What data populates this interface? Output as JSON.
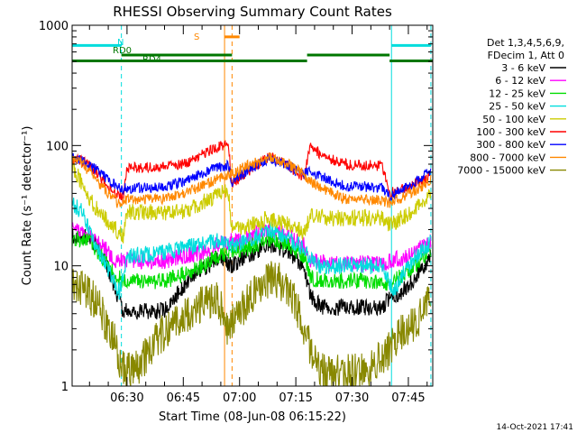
{
  "chart_data": {
    "type": "line",
    "title": "RHESSI Observing Summary Count Rates",
    "xlabel": "Start Time (08-Jun-08 06:15:22)",
    "ylabel": "Count Rate (s⁻¹ detector⁻¹)",
    "yscale": "log",
    "ylim": [
      1,
      1000
    ],
    "xlim": [
      "06:15:22",
      "07:51:30"
    ],
    "x_ticks": [
      "06:30",
      "06:45",
      "07:00",
      "07:15",
      "07:30",
      "07:45"
    ],
    "y_ticks": [
      "1",
      "10",
      "100",
      "1000"
    ],
    "footer": "14-Oct-2021 17:41",
    "legend": {
      "header": [
        "Det 1,3,4,5,6,9,",
        "FDecim 1, Att 0"
      ],
      "position": "right"
    },
    "series": [
      {
        "name": "3 - 6 keV",
        "color": "#000000",
        "points": [
          [
            "06:15:22",
            18
          ],
          [
            "06:20",
            17
          ],
          [
            "06:24",
            12
          ],
          [
            "06:27",
            6
          ],
          [
            "06:29",
            4.2
          ],
          [
            "06:40",
            4.2
          ],
          [
            "06:43",
            5.5
          ],
          [
            "06:47",
            8
          ],
          [
            "06:52",
            10
          ],
          [
            "06:54",
            12
          ],
          [
            "06:58",
            10
          ],
          [
            "07:02",
            12
          ],
          [
            "07:08",
            15
          ],
          [
            "07:13",
            13
          ],
          [
            "07:17",
            10
          ],
          [
            "07:19",
            5.5
          ],
          [
            "07:22",
            4.5
          ],
          [
            "07:38",
            4.5
          ],
          [
            "07:40",
            5.5
          ],
          [
            "07:43",
            6
          ],
          [
            "07:47",
            8
          ],
          [
            "07:51",
            12
          ]
        ]
      },
      {
        "name": "6 - 12 keV",
        "color": "#ff00ff",
        "points": [
          [
            "06:15:22",
            20
          ],
          [
            "06:20",
            18
          ],
          [
            "06:24",
            14
          ],
          [
            "06:27",
            11
          ],
          [
            "06:30",
            11
          ],
          [
            "06:40",
            11
          ],
          [
            "06:45",
            12
          ],
          [
            "06:50",
            13
          ],
          [
            "06:54",
            15
          ],
          [
            "06:57",
            16
          ],
          [
            "07:00",
            16
          ],
          [
            "07:04",
            18
          ],
          [
            "07:08",
            20
          ],
          [
            "07:13",
            18
          ],
          [
            "07:17",
            15
          ],
          [
            "07:19",
            11
          ],
          [
            "07:22",
            10.5
          ],
          [
            "07:38",
            10.5
          ],
          [
            "07:40",
            11
          ],
          [
            "07:45",
            12
          ],
          [
            "07:51",
            16
          ]
        ]
      },
      {
        "name": "12 - 25 keV",
        "color": "#00dd00",
        "points": [
          [
            "06:15:22",
            17
          ],
          [
            "06:20",
            16
          ],
          [
            "06:24",
            11
          ],
          [
            "06:27",
            8
          ],
          [
            "06:30",
            7.5
          ],
          [
            "06:40",
            7.5
          ],
          [
            "06:45",
            8.5
          ],
          [
            "06:50",
            10
          ],
          [
            "06:54",
            12
          ],
          [
            "06:58",
            13
          ],
          [
            "07:02",
            14
          ],
          [
            "07:08",
            17
          ],
          [
            "07:13",
            15
          ],
          [
            "07:17",
            12
          ],
          [
            "07:19",
            8
          ],
          [
            "07:22",
            7.5
          ],
          [
            "07:38",
            7.5
          ],
          [
            "07:40",
            7
          ],
          [
            "07:45",
            9
          ],
          [
            "07:51",
            13
          ]
        ]
      },
      {
        "name": "25 - 50 keV",
        "color": "#00dddd",
        "points": [
          [
            "06:15:22",
            33
          ],
          [
            "06:18",
            28
          ],
          [
            "06:22",
            14
          ],
          [
            "06:26",
            8
          ],
          [
            "06:28",
            6
          ],
          [
            "06:30",
            12
          ],
          [
            "06:40",
            13
          ],
          [
            "06:45",
            14
          ],
          [
            "06:50",
            15
          ],
          [
            "06:54",
            16
          ],
          [
            "06:58",
            15
          ],
          [
            "07:02",
            16
          ],
          [
            "07:08",
            20
          ],
          [
            "07:13",
            17
          ],
          [
            "07:17",
            14
          ],
          [
            "07:19",
            11
          ],
          [
            "07:22",
            10
          ],
          [
            "07:38",
            10
          ],
          [
            "07:41",
            6
          ],
          [
            "07:44",
            9
          ],
          [
            "07:47",
            12
          ],
          [
            "07:51",
            16
          ]
        ]
      },
      {
        "name": "50 - 100 keV",
        "color": "#cccc00",
        "points": [
          [
            "06:15:22",
            70
          ],
          [
            "06:18",
            48
          ],
          [
            "06:21",
            32
          ],
          [
            "06:24",
            25
          ],
          [
            "06:27",
            20
          ],
          [
            "06:29",
            18
          ],
          [
            "06:30",
            28
          ],
          [
            "06:40",
            28
          ],
          [
            "06:45",
            28
          ],
          [
            "06:52",
            36
          ],
          [
            "06:56",
            42
          ],
          [
            "06:57",
            40
          ],
          [
            "06:58",
            21
          ],
          [
            "07:02",
            21
          ],
          [
            "07:08",
            25
          ],
          [
            "07:13",
            22
          ],
          [
            "07:17",
            19
          ],
          [
            "07:19",
            26
          ],
          [
            "07:25",
            25
          ],
          [
            "07:38",
            25
          ],
          [
            "07:40",
            22
          ],
          [
            "07:44",
            26
          ],
          [
            "07:48",
            32
          ],
          [
            "07:51",
            38
          ]
        ]
      },
      {
        "name": "100 - 300 keV",
        "color": "#ff0000",
        "points": [
          [
            "06:15:22",
            78
          ],
          [
            "06:18",
            75
          ],
          [
            "06:22",
            60
          ],
          [
            "06:25",
            45
          ],
          [
            "06:28",
            38
          ],
          [
            "06:29",
            36
          ],
          [
            "06:30",
            65
          ],
          [
            "06:40",
            66
          ],
          [
            "06:45",
            70
          ],
          [
            "06:50",
            85
          ],
          [
            "06:54",
            97
          ],
          [
            "06:57",
            102
          ],
          [
            "06:58",
            48
          ],
          [
            "07:02",
            60
          ],
          [
            "07:08",
            82
          ],
          [
            "07:13",
            68
          ],
          [
            "07:17",
            54
          ],
          [
            "07:19",
            100
          ],
          [
            "07:22",
            82
          ],
          [
            "07:28",
            70
          ],
          [
            "07:38",
            68
          ],
          [
            "07:40",
            40
          ],
          [
            "07:44",
            44
          ],
          [
            "07:48",
            50
          ],
          [
            "07:51",
            56
          ]
        ]
      },
      {
        "name": "300 - 800 keV",
        "color": "#0000ff",
        "points": [
          [
            "06:15:22",
            80
          ],
          [
            "06:18",
            76
          ],
          [
            "06:22",
            62
          ],
          [
            "06:25",
            52
          ],
          [
            "06:28",
            44
          ],
          [
            "06:30",
            44
          ],
          [
            "06:40",
            46
          ],
          [
            "06:45",
            50
          ],
          [
            "06:50",
            58
          ],
          [
            "06:54",
            66
          ],
          [
            "06:57",
            68
          ],
          [
            "06:58",
            50
          ],
          [
            "07:02",
            62
          ],
          [
            "07:08",
            78
          ],
          [
            "07:13",
            68
          ],
          [
            "07:17",
            57
          ],
          [
            "07:19",
            62
          ],
          [
            "07:22",
            55
          ],
          [
            "07:28",
            46
          ],
          [
            "07:38",
            45
          ],
          [
            "07:40",
            37
          ],
          [
            "07:44",
            44
          ],
          [
            "07:48",
            52
          ],
          [
            "07:51",
            62
          ]
        ]
      },
      {
        "name": "800 - 7000 keV",
        "color": "#ff8800",
        "points": [
          [
            "06:15:22",
            76
          ],
          [
            "06:18",
            72
          ],
          [
            "06:22",
            50
          ],
          [
            "06:25",
            40
          ],
          [
            "06:28",
            32
          ],
          [
            "06:30",
            36
          ],
          [
            "06:40",
            36
          ],
          [
            "06:45",
            40
          ],
          [
            "06:50",
            46
          ],
          [
            "06:54",
            52
          ],
          [
            "06:57",
            58
          ],
          [
            "06:58",
            58
          ],
          [
            "07:02",
            68
          ],
          [
            "07:08",
            80
          ],
          [
            "07:13",
            70
          ],
          [
            "07:17",
            58
          ],
          [
            "07:19",
            50
          ],
          [
            "07:22",
            44
          ],
          [
            "07:28",
            36
          ],
          [
            "07:38",
            35
          ],
          [
            "07:40",
            33
          ],
          [
            "07:44",
            38
          ],
          [
            "07:48",
            44
          ],
          [
            "07:51",
            52
          ]
        ]
      },
      {
        "name": "7000 - 15000 keV",
        "color": "#888800",
        "points": [
          [
            "06:15:22",
            7
          ],
          [
            "06:18",
            6.5
          ],
          [
            "06:22",
            5
          ],
          [
            "06:25",
            3
          ],
          [
            "06:27",
            2.2
          ],
          [
            "06:28",
            1.6
          ],
          [
            "06:30",
            1.3
          ],
          [
            "06:33",
            1.4
          ],
          [
            "06:36",
            2
          ],
          [
            "06:39",
            2.6
          ],
          [
            "06:42",
            3.2
          ],
          [
            "06:45",
            3.8
          ],
          [
            "06:48",
            4.5
          ],
          [
            "06:51",
            5
          ],
          [
            "06:54",
            5.5
          ],
          [
            "06:57",
            3
          ],
          [
            "07:00",
            4
          ],
          [
            "07:04",
            6
          ],
          [
            "07:08",
            8
          ],
          [
            "07:12",
            7
          ],
          [
            "07:15",
            5
          ],
          [
            "07:17",
            3
          ],
          [
            "07:19",
            2
          ],
          [
            "07:21",
            1.4
          ],
          [
            "07:24",
            1.3
          ],
          [
            "07:34",
            1.3
          ],
          [
            "07:37",
            1.6
          ],
          [
            "07:40",
            2
          ],
          [
            "07:43",
            2.8
          ],
          [
            "07:47",
            3.5
          ],
          [
            "07:51",
            5
          ]
        ]
      }
    ],
    "vertical_markers": [
      {
        "time": "06:15:22",
        "color": "#00dddd",
        "style": "solid"
      },
      {
        "time": "06:28:30",
        "color": "#00dddd",
        "style": "dashed"
      },
      {
        "time": "06:56:00",
        "color": "#ff8800",
        "style": "solid"
      },
      {
        "time": "06:58:00",
        "color": "#ff8800",
        "style": "dashed"
      },
      {
        "time": "07:40:30",
        "color": "#00dddd",
        "style": "solid"
      },
      {
        "time": "07:51:00",
        "color": "#00dddd",
        "style": "dashed"
      }
    ],
    "flag_bars": [
      {
        "label": "N",
        "color": "#00dddd",
        "level": 680,
        "segments": [
          [
            "06:15:22",
            "06:28:30"
          ],
          [
            "07:40:30",
            "07:51:00"
          ]
        ]
      },
      {
        "label": "S",
        "color": "#ff8800",
        "level": 800,
        "segments": [
          [
            "06:56:00",
            "07:00:00"
          ]
        ]
      },
      {
        "label": "RD0",
        "color": "#007700",
        "level": 565,
        "segments": [
          [
            "06:28:30",
            "06:58:00"
          ],
          [
            "07:18:00",
            "07:40:00"
          ]
        ]
      },
      {
        "label": "RD4",
        "color": "#007700",
        "level": 505,
        "segments": [
          [
            "06:15:22",
            "06:58:00"
          ],
          [
            "06:58:00",
            "07:18:00"
          ],
          [
            "07:40:00",
            "07:51:30"
          ]
        ]
      }
    ]
  }
}
